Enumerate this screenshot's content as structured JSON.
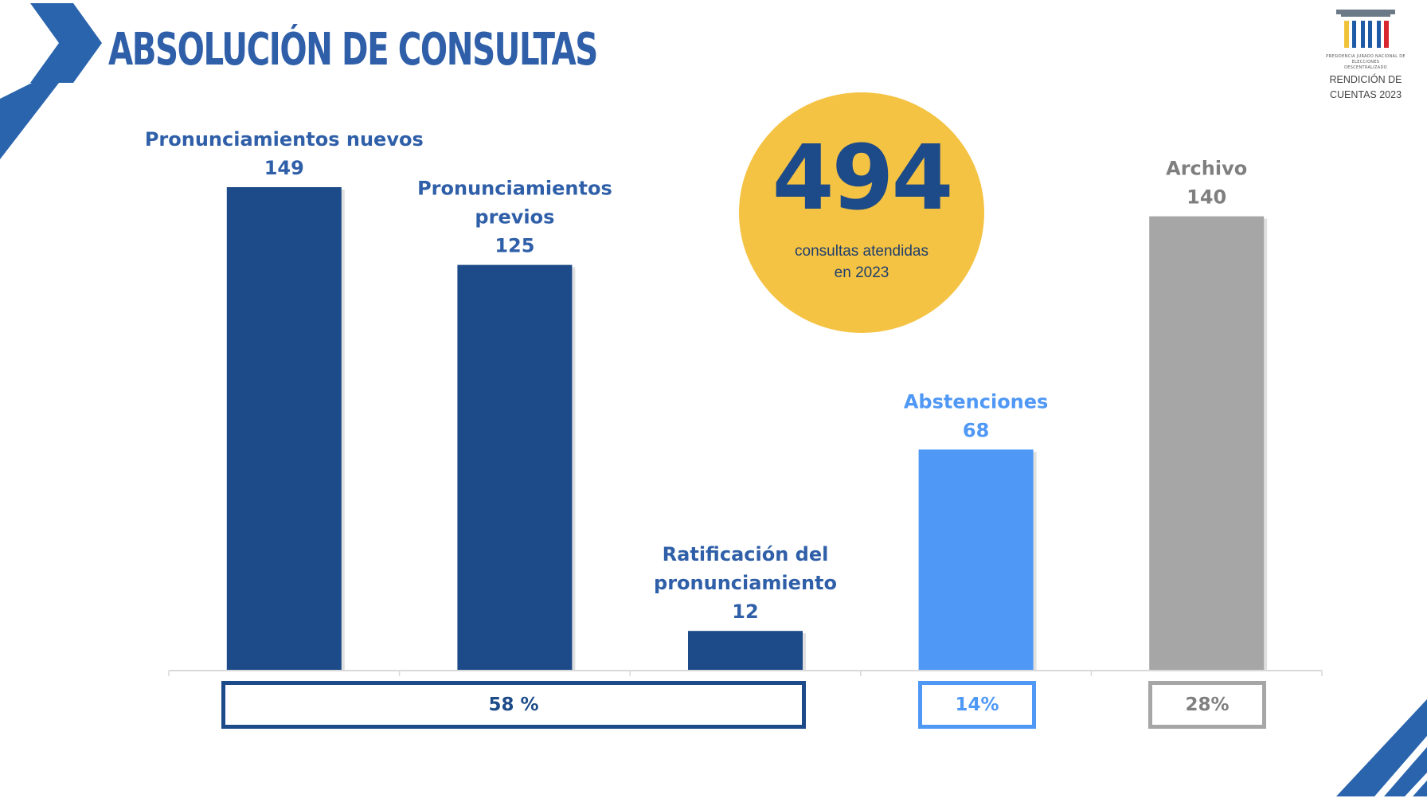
{
  "header": {
    "title": "ABSOLUCIÓN DE CONSULTAS"
  },
  "logo": {
    "tagline_1": "PRESIDENCIA JURADO NACIONAL DE ELECCIONES",
    "tagline_2": "DESCENTRALIZADO",
    "caption_1": "RENDICIÓN DE",
    "caption_2": "CUENTAS 2023"
  },
  "highlight": {
    "total": "494",
    "line_1": "consultas atendidas",
    "line_2": "en 2023"
  },
  "percentages": {
    "group_pronunciamientos": "58 %",
    "abstenciones": "14%",
    "archivo": "28%"
  },
  "colors": {
    "dark_blue": "#1d4a88",
    "light_blue": "#4f98f5",
    "gray": "#a6a6a6",
    "gold": "#f5c343",
    "title_blue": "#2f5fa8"
  },
  "chart_data": {
    "type": "bar",
    "categories": [
      [
        "Pronunciamientos nuevos"
      ],
      [
        "Pronunciamientos",
        "previos"
      ],
      [
        "Ratificación del",
        "pronunciamiento"
      ],
      [
        "Abstenciones"
      ],
      [
        "Archivo"
      ]
    ],
    "values": [
      149,
      125,
      12,
      68,
      140
    ],
    "colors": [
      "#1d4a88",
      "#1d4a88",
      "#1d4a88",
      "#4f98f5",
      "#a6a6a6"
    ],
    "label_colors": [
      "#2f5fa8",
      "#2f5fa8",
      "#2f5fa8",
      "#4f98f5",
      "#7f7f7f"
    ],
    "ylim": [
      0,
      149
    ],
    "grid": false,
    "legend": "none"
  }
}
